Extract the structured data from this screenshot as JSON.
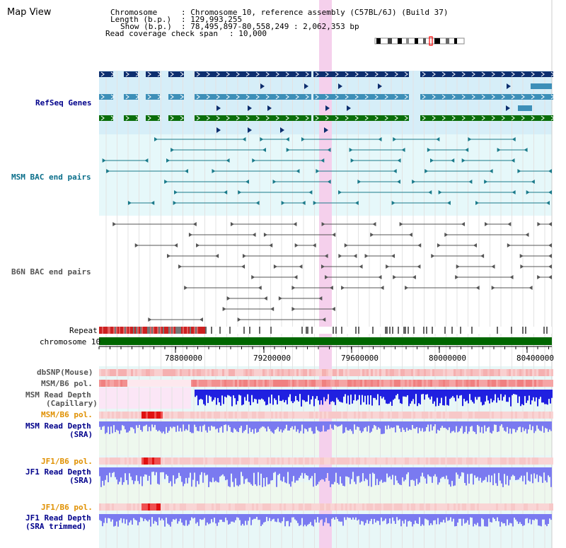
{
  "header": {
    "title": "Map View",
    "chromosome_key": "Chromosome",
    "chromosome_value": ": Chromosome 10, reference assembly (C57BL/6J) (Build 37)",
    "length_key": "Length (b.p.)",
    "length_value": ": 129,993,255",
    "show_key": "Show (b.p.)",
    "show_value": ": 78,495,897-80,558,249 : 2,062,353 bp",
    "coverage_key": "Read coverage check span",
    "coverage_value": ": 10,000"
  },
  "tracks": {
    "refseq": "RefSeq Genes",
    "msm_bac": "MSM BAC end pairs",
    "b6n_bac": "B6N BAC end pairs",
    "repeat": "Repeat",
    "chromosome": "chromosome 10",
    "dbsnp": "dbSNP(Mouse)",
    "msm_b6_pol_1": "MSM/B6 pol.",
    "msm_depth_cap_1": "MSM Read Depth",
    "msm_depth_cap_2": "(Capillary)",
    "msm_b6_pol_2": "MSM/B6 pol.",
    "msm_depth_sra_1": "MSM Read Depth",
    "msm_depth_sra_2": "(SRA)",
    "jf1_b6_pol_1": "JF1/B6 pol.",
    "jf1_depth_sra_1": "JF1 Read Depth",
    "jf1_depth_sra_2": "(SRA)",
    "jf1_b6_pol_2": "JF1/B6 pol.",
    "jf1_depth_trim_1": "JF1 Read Depth",
    "jf1_depth_trim_2": "(SRA trimmed)"
  },
  "axis": {
    "ticks": [
      "78800000",
      "79200000",
      "79600000",
      "80000000",
      "80400000"
    ]
  },
  "colors": {
    "highlight": "#f5d0ec",
    "refseq_bg": "#d6eef8",
    "msm_bac_bg": "#e6f8fa",
    "gene_dark": "#0d2e6e",
    "gene_mid": "#3d8fb8",
    "gene_green": "#0a6e0a",
    "chromosome": "#006600",
    "depth_blue": "#2020e0",
    "depth_light": "#7a7af0",
    "label_blue": "#00008b",
    "label_teal": "#0a6e8a",
    "label_orange": "#e09000"
  }
}
